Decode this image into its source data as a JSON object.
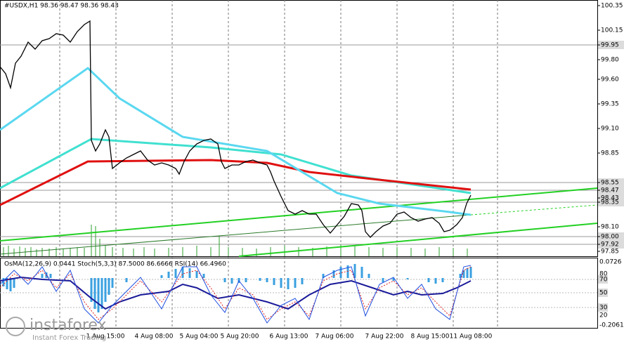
{
  "header": {
    "symbol_info": "#USDX,H1  98.36 98.47 98.36 98.43"
  },
  "price_axis": {
    "labels": [
      "100.35",
      "100.15",
      "99.95",
      "99.80",
      "99.60",
      "99.35",
      "99.10",
      "98.85",
      "98.55",
      "98.47",
      "98.43",
      "98.35",
      "98.10",
      "98.00",
      "97.92",
      "97.85"
    ]
  },
  "indicator": {
    "info": "OsMA(12,26,9) 0.0441  Stoch(5,3,3) 87.5000 86.6666  RSI(14) 66.4960",
    "axis_labels": [
      "0.0726",
      "80",
      "70",
      "50",
      "30",
      "20",
      "-0.2061"
    ]
  },
  "time_axis": {
    "labels": [
      "1 Aug 15:00",
      "4 Aug 08:00",
      "5 Aug 04:00",
      "5 Aug 20:00",
      "6 Aug 13:00",
      "7 Aug 06:00",
      "7 Aug 22:00",
      "8 Aug 15:00",
      "11 Aug 08:00"
    ]
  },
  "logo": {
    "name": "instaforex",
    "tagline": "Instant Forex Trading"
  }
}
